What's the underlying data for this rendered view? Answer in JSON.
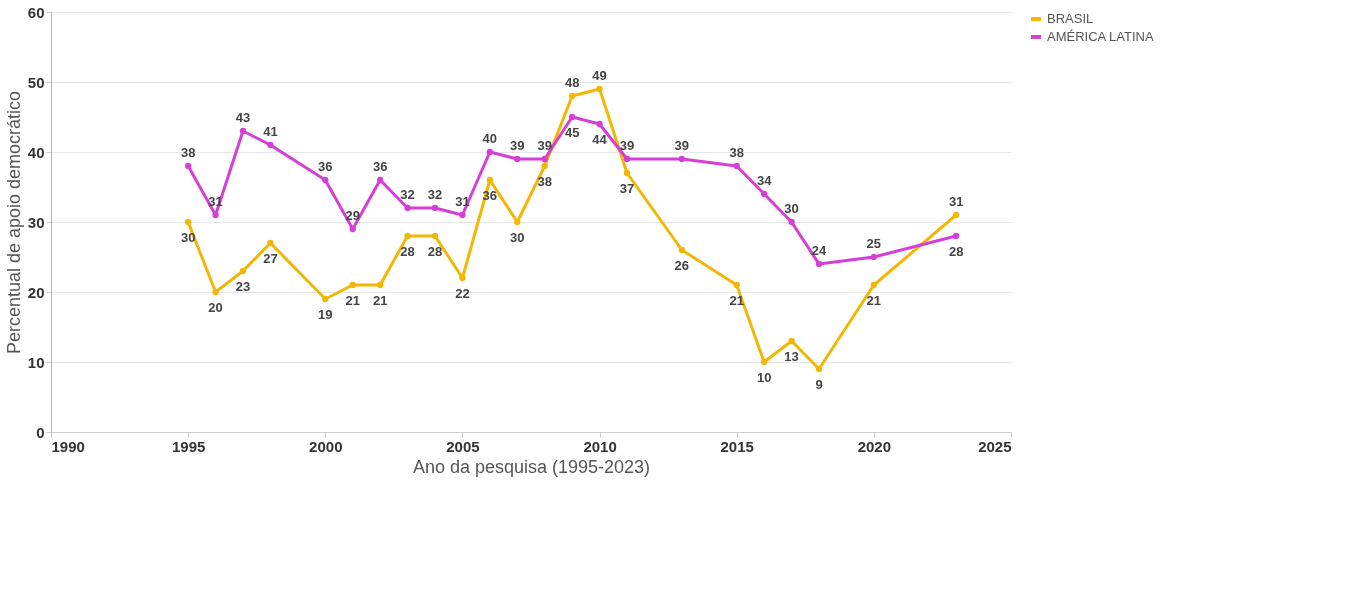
{
  "chart_data": {
    "type": "line",
    "xlabel": "Ano da pesquisa (1995-2023)",
    "ylabel": "Percentual de apoio democrático",
    "x": [
      1995,
      1996,
      1997,
      1998,
      2000,
      2001,
      2002,
      2003,
      2004,
      2005,
      2006,
      2007,
      2008,
      2009,
      2010,
      2011,
      2013,
      2015,
      2016,
      2017,
      2018,
      2020,
      2023
    ],
    "series": [
      {
        "name": "BRASIL",
        "color": "#f2b705",
        "values": [
          30,
          20,
          23,
          27,
          19,
          21,
          21,
          28,
          28,
          22,
          36,
          30,
          38,
          48,
          49,
          37,
          26,
          21,
          10,
          13,
          9,
          21,
          31
        ]
      },
      {
        "name": "AMÉRICA LATINA",
        "color": "#d63fd6",
        "values": [
          38,
          31,
          43,
          41,
          36,
          29,
          36,
          32,
          32,
          31,
          40,
          39,
          39,
          45,
          44,
          39,
          39,
          38,
          34,
          30,
          24,
          25,
          28
        ]
      }
    ],
    "xlim": [
      1990,
      2025
    ],
    "xticks": [
      1990,
      1995,
      2000,
      2005,
      2010,
      2015,
      2020,
      2025
    ],
    "ylim": [
      0,
      60
    ],
    "yticks": [
      0,
      10,
      20,
      30,
      40,
      50,
      60
    ],
    "grid": "y",
    "legend": "right",
    "marker": "circle",
    "line_style": "solid",
    "data_labels": true
  }
}
